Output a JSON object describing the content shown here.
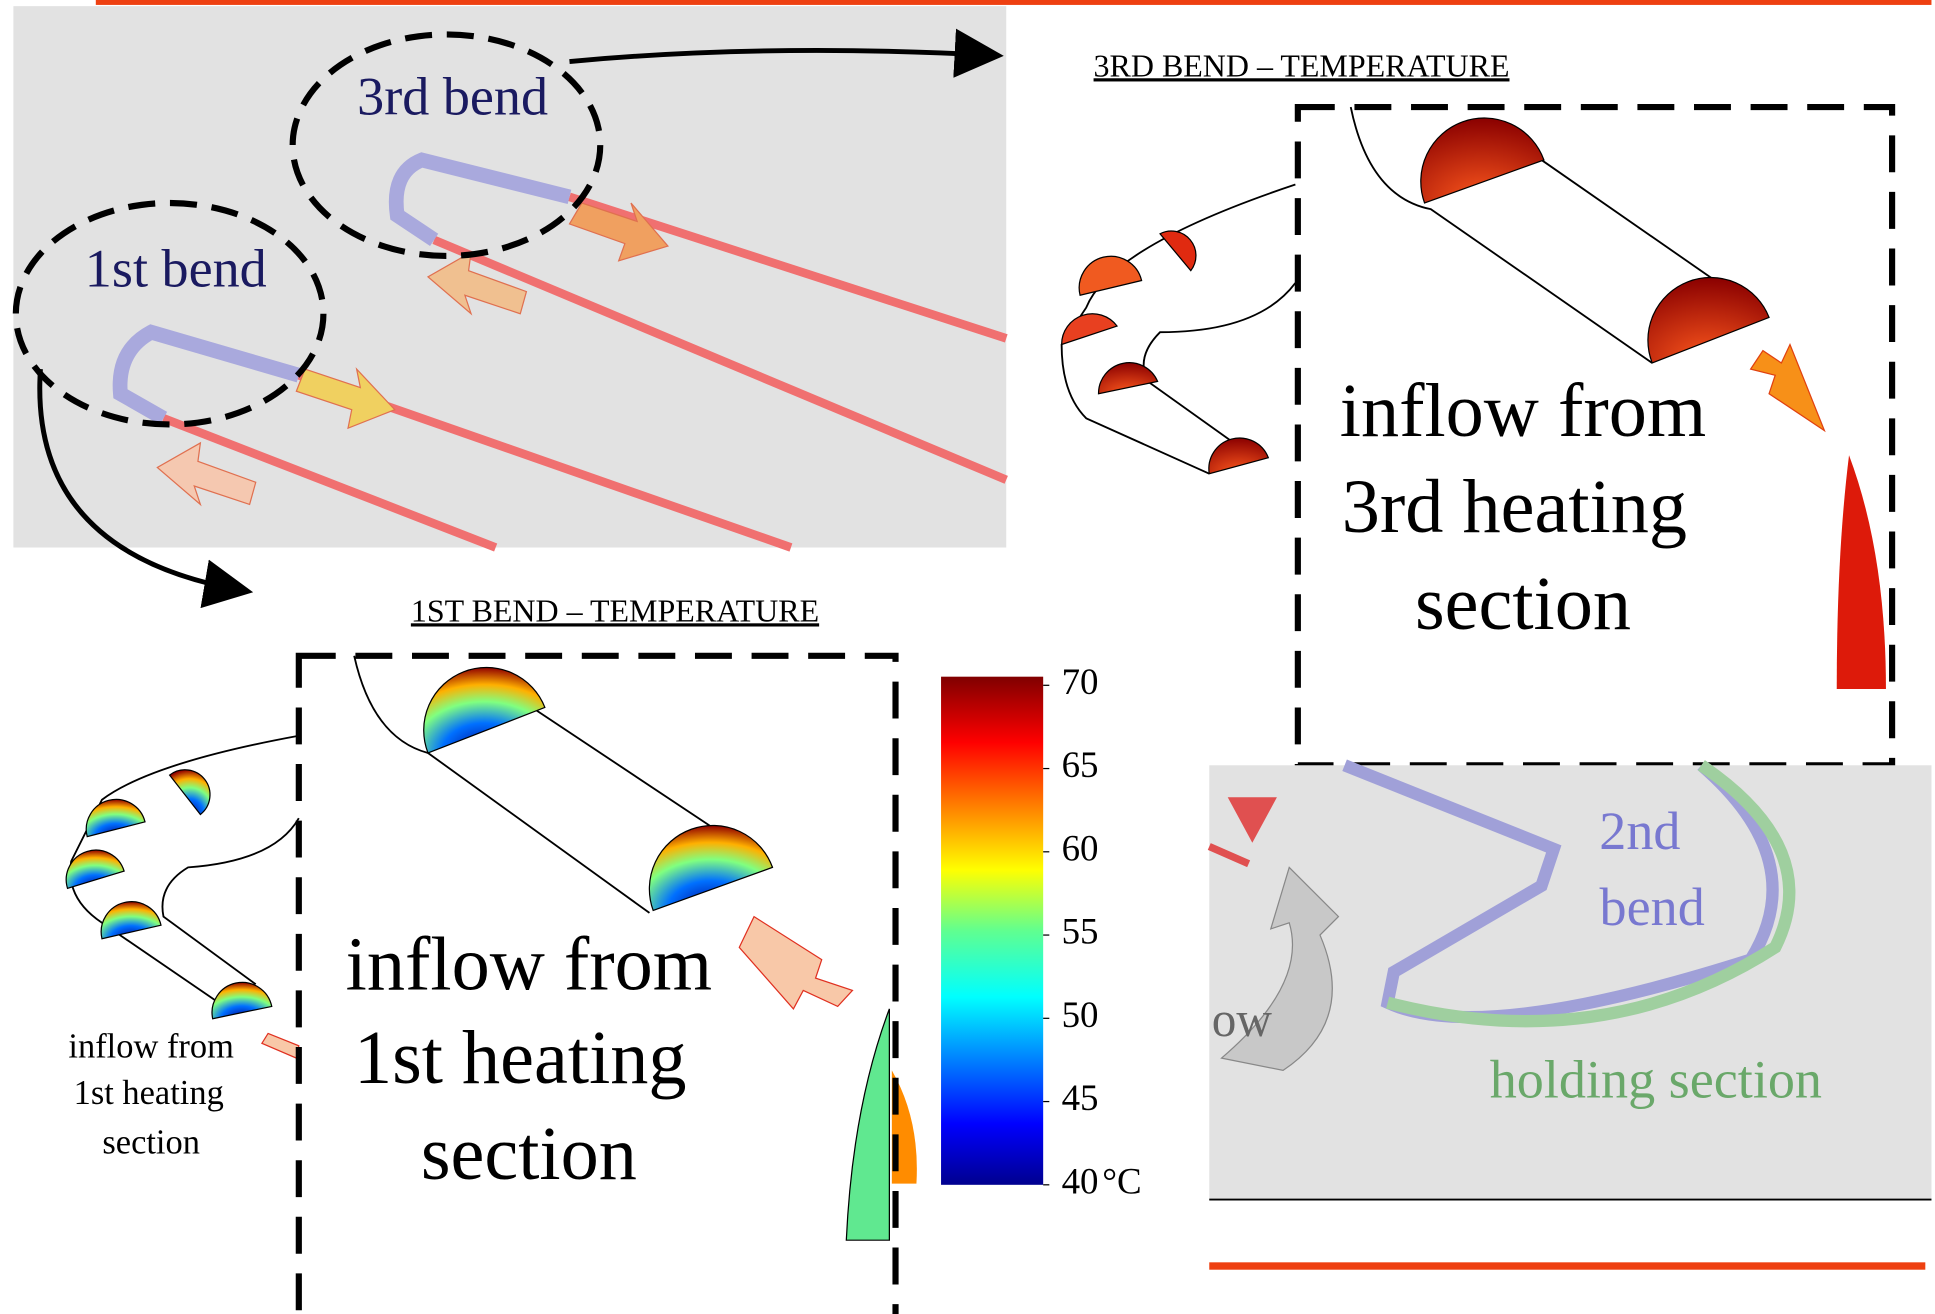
{
  "top_panel": {
    "callout_upper": "3rd bend",
    "callout_lower": "1st bend"
  },
  "third_bend": {
    "title": "3RD BEND – TEMPERATURE",
    "inflow_lines": [
      "inflow from",
      "3rd heating",
      "section"
    ]
  },
  "first_bend": {
    "title": "1ST BEND – TEMPERATURE",
    "inflow_lines": [
      "inflow from",
      "1st heating",
      "section"
    ],
    "small_inflow_lines": [
      "inflow from",
      "1st heating",
      "section"
    ]
  },
  "colorbar": {
    "range": [
      40,
      70
    ],
    "ticks": [
      70,
      65,
      60,
      55,
      50,
      45,
      40
    ],
    "unit": "°C"
  },
  "overview_panel": {
    "bend_label": [
      "2nd",
      "bend"
    ],
    "holding_label": "holding section",
    "partial_label": "ow"
  }
}
